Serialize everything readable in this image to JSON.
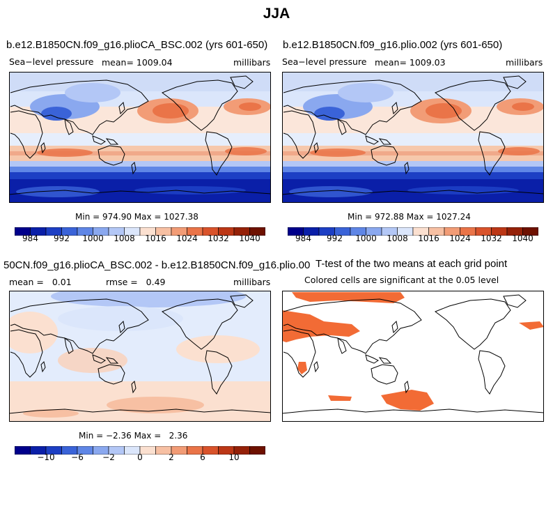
{
  "title": "JJA",
  "panels": [
    {
      "title": "b.e12.B1850CN.f09_g16.plioCA_BSC.002 (yrs 601-650)",
      "variable": "Sea−level pressure",
      "mean_label": "mean= 1009.04",
      "units": "millibars",
      "minmax": "Min = 974.90 Max = 1027.38"
    },
    {
      "title": "b.e12.B1850CN.f09_g16.plio.002 (yrs 601-650)",
      "variable": "Sea−level pressure",
      "mean_label": "mean= 1009.03",
      "units": "millibars",
      "minmax": "Min = 972.88 Max = 1027.24"
    },
    {
      "title": "50CN.f09_g16.plioCA_BSC.002 - b.e12.B1850CN.f09_g16.plio.002",
      "mean_label": "mean =   0.01",
      "rmse_label": "rmse =   0.49",
      "units": "millibars",
      "minmax": "Min = −2.36 Max =   2.36"
    },
    {
      "title": "T-test of the two means at each grid point",
      "subtitle": "Colored cells are significant at the 0.05 level"
    }
  ],
  "colorbars": {
    "abs_ticks": [
      "984",
      "992",
      "1000",
      "1008",
      "1016",
      "1024",
      "1032",
      "1040"
    ],
    "diff_ticks": [
      "−10",
      "−6",
      "−2",
      "0",
      "2",
      "6",
      "10"
    ],
    "colors": [
      "#00008b",
      "#0a1fa8",
      "#1d3fc4",
      "#3a63d8",
      "#5f86e6",
      "#8aa8ef",
      "#b3c7f6",
      "#dbe6fb",
      "#fbe0d0",
      "#f7c0a3",
      "#f29c76",
      "#ea7448",
      "#d9532b",
      "#bc3716",
      "#952108",
      "#6e1100"
    ]
  },
  "colors": {
    "significant": "#f26b35",
    "map_background": "#ffffff"
  }
}
